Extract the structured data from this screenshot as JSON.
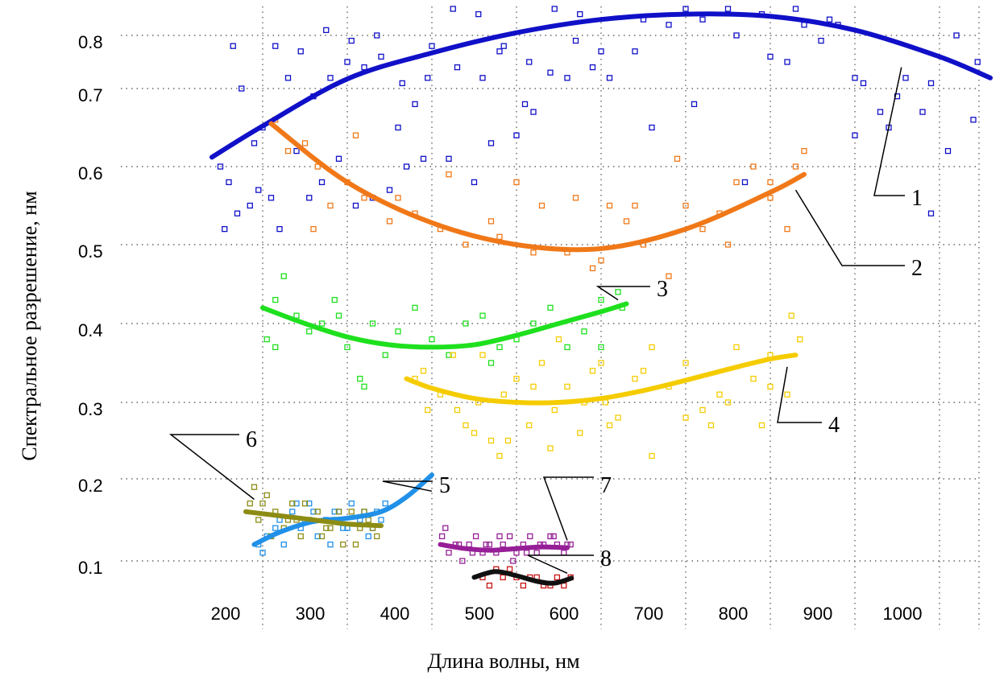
{
  "chart_data": {
    "type": "scatter",
    "title": "",
    "xlabel": "Длина волны, нм",
    "ylabel": "Спектральное разрешение, нм",
    "xlim": [
      160,
      1060
    ],
    "ylim": [
      0.05,
      0.85
    ],
    "x_ticks": [
      200,
      300,
      400,
      500,
      600,
      700,
      800,
      900,
      1000
    ],
    "y_ticks": [
      0.1,
      0.2,
      0.3,
      0.4,
      0.5,
      0.6,
      0.7,
      0.8
    ],
    "x_tick_labels": [
      "200",
      "300",
      "400",
      "500",
      "600",
      "700",
      "800",
      "900",
      "1000"
    ],
    "y_tick_labels": [
      "0.1",
      "0.2",
      "0.3",
      "0.4",
      "0.5",
      "0.6",
      "0.7",
      "0.8"
    ],
    "grid": true,
    "legend": "none",
    "series": [
      {
        "label": "1",
        "color": "#1010c8",
        "fit_x": [
          140,
          200,
          300,
          400,
          500,
          600,
          700,
          800,
          900,
          1000,
          1060
        ],
        "fit_y": [
          0.612,
          0.652,
          0.718,
          0.767,
          0.805,
          0.83,
          0.84,
          0.836,
          0.81,
          0.76,
          0.72
        ],
        "points_x": [
          150,
          160,
          170,
          185,
          195,
          210,
          220,
          240,
          255,
          270,
          290,
          310,
          330,
          350,
          370,
          390,
          420,
          450,
          470,
          500,
          520,
          560,
          590,
          640,
          680,
          720,
          760,
          800,
          840,
          870,
          900,
          930,
          960,
          990,
          1020,
          1045,
          155,
          175,
          200,
          230,
          260,
          280,
          300,
          320,
          340,
          360,
          380,
          400,
          430,
          460,
          480,
          510,
          540,
          570,
          600,
          650,
          700,
          750,
          790,
          830,
          880,
          910,
          950,
          980,
          1010,
          1040,
          165,
          190,
          215,
          245,
          275,
          305,
          335,
          365,
          395,
          425,
          455,
          485,
          515,
          545,
          575,
          610,
          660,
          710,
          770,
          820,
          860,
          900,
          940,
          990
        ],
        "points_y": [
          0.6,
          0.58,
          0.54,
          0.55,
          0.57,
          0.56,
          0.52,
          0.62,
          0.56,
          0.58,
          0.61,
          0.55,
          0.56,
          0.57,
          0.6,
          0.61,
          0.61,
          0.58,
          0.63,
          0.64,
          0.67,
          0.72,
          0.74,
          0.77,
          0.82,
          0.83,
          0.8,
          0.76,
          0.82,
          0.83,
          0.72,
          0.67,
          0.72,
          0.71,
          0.8,
          0.75,
          0.52,
          0.7,
          0.65,
          0.72,
          0.69,
          0.72,
          0.75,
          0.74,
          0.76,
          0.65,
          0.68,
          0.78,
          0.74,
          0.72,
          0.77,
          0.68,
          0.73,
          0.79,
          0.77,
          0.83,
          0.85,
          0.85,
          0.84,
          0.85,
          0.82,
          0.71,
          0.69,
          0.67,
          0.62,
          0.66,
          0.78,
          0.63,
          0.78,
          0.77,
          0.81,
          0.79,
          0.8,
          0.71,
          0.72,
          0.85,
          0.84,
          0.78,
          0.75,
          0.85,
          0.84,
          0.72,
          0.65,
          0.68,
          0.58,
          0.75,
          0.79,
          0.64,
          0.65,
          0.54
        ]
      },
      {
        "label": "2",
        "color": "#f07818",
        "fit_x": [
          210,
          300,
          400,
          500,
          600,
          700,
          800,
          840
        ],
        "fit_y": [
          0.655,
          0.58,
          0.528,
          0.5,
          0.495,
          0.52,
          0.567,
          0.59
        ],
        "points_x": [
          215,
          230,
          250,
          265,
          280,
          300,
          320,
          350,
          380,
          410,
          440,
          470,
          500,
          530,
          560,
          590,
          610,
          630,
          650,
          680,
          700,
          720,
          740,
          760,
          780,
          800,
          820,
          840,
          260,
          310,
          360,
          420,
          480,
          520,
          570,
          600,
          640,
          690,
          750,
          800,
          830
        ],
        "points_y": [
          0.66,
          0.62,
          0.63,
          0.6,
          0.55,
          0.58,
          0.56,
          0.53,
          0.54,
          0.52,
          0.5,
          0.53,
          0.58,
          0.55,
          0.49,
          0.47,
          0.55,
          0.53,
          0.5,
          0.46,
          0.55,
          0.52,
          0.54,
          0.58,
          0.6,
          0.56,
          0.52,
          0.62,
          0.52,
          0.64,
          0.56,
          0.59,
          0.51,
          0.49,
          0.56,
          0.48,
          0.55,
          0.61,
          0.5,
          0.58,
          0.6
        ]
      },
      {
        "label": "3",
        "color": "#1ee01e",
        "fit_x": [
          200,
          250,
          300,
          350,
          400,
          450,
          500,
          550,
          600,
          630
        ],
        "fit_y": [
          0.42,
          0.4,
          0.383,
          0.373,
          0.37,
          0.373,
          0.385,
          0.4,
          0.415,
          0.425
        ],
        "points_x": [
          205,
          215,
          225,
          240,
          255,
          270,
          285,
          300,
          315,
          330,
          345,
          360,
          380,
          400,
          420,
          440,
          460,
          480,
          500,
          520,
          540,
          560,
          580,
          600,
          620,
          625,
          215,
          290,
          320,
          470,
          600
        ],
        "points_y": [
          0.38,
          0.37,
          0.46,
          0.41,
          0.39,
          0.4,
          0.43,
          0.37,
          0.33,
          0.4,
          0.36,
          0.39,
          0.42,
          0.38,
          0.36,
          0.4,
          0.41,
          0.37,
          0.38,
          0.4,
          0.42,
          0.37,
          0.39,
          0.43,
          0.44,
          0.42,
          0.43,
          0.41,
          0.32,
          0.35,
          0.37
        ]
      },
      {
        "label": "4",
        "color": "#f5cc00",
        "fit_x": [
          370,
          400,
          450,
          500,
          550,
          600,
          650,
          700,
          750,
          800,
          830
        ],
        "fit_y": [
          0.33,
          0.318,
          0.305,
          0.3,
          0.3,
          0.305,
          0.315,
          0.328,
          0.342,
          0.355,
          0.36
        ],
        "points_x": [
          380,
          395,
          410,
          425,
          440,
          455,
          470,
          485,
          500,
          515,
          530,
          545,
          560,
          575,
          590,
          605,
          620,
          640,
          660,
          680,
          700,
          720,
          740,
          760,
          780,
          800,
          820,
          835,
          390,
          430,
          460,
          490,
          520,
          550,
          580,
          610,
          650,
          700,
          750,
          800,
          825,
          450,
          480,
          540,
          600,
          660,
          730,
          790
        ],
        "points_y": [
          0.33,
          0.29,
          0.31,
          0.36,
          0.27,
          0.3,
          0.25,
          0.31,
          0.33,
          0.27,
          0.35,
          0.29,
          0.32,
          0.26,
          0.34,
          0.3,
          0.28,
          0.33,
          0.37,
          0.32,
          0.35,
          0.29,
          0.31,
          0.37,
          0.33,
          0.36,
          0.31,
          0.38,
          0.34,
          0.29,
          0.36,
          0.25,
          0.32,
          0.38,
          0.3,
          0.27,
          0.34,
          0.28,
          0.3,
          0.32,
          0.41,
          0.26,
          0.23,
          0.24,
          0.35,
          0.23,
          0.27,
          0.27
        ]
      },
      {
        "label": "5",
        "color": "#2090e8",
        "fit_x": [
          190,
          220,
          260,
          300,
          340,
          370,
          400
        ],
        "fit_y": [
          0.12,
          0.135,
          0.148,
          0.152,
          0.16,
          0.178,
          0.205
        ],
        "points_x": [
          195,
          205,
          215,
          225,
          235,
          245,
          255,
          265,
          275,
          285,
          295,
          305,
          315,
          325,
          335,
          345,
          200,
          220,
          240,
          260,
          280,
          300,
          320,
          340,
          210,
          250,
          290,
          330
        ],
        "points_y": [
          0.12,
          0.13,
          0.14,
          0.12,
          0.16,
          0.14,
          0.17,
          0.13,
          0.15,
          0.16,
          0.14,
          0.17,
          0.15,
          0.13,
          0.16,
          0.17,
          0.11,
          0.15,
          0.17,
          0.16,
          0.12,
          0.14,
          0.16,
          0.15,
          0.13,
          0.15,
          0.16,
          0.14
        ]
      },
      {
        "label": "6",
        "color": "#8c8c14",
        "fit_x": [
          180,
          220,
          260,
          300,
          340
        ],
        "fit_y": [
          0.16,
          0.155,
          0.15,
          0.145,
          0.143
        ],
        "points_x": [
          185,
          195,
          205,
          215,
          225,
          235,
          245,
          255,
          265,
          275,
          285,
          295,
          305,
          315,
          325,
          335,
          190,
          210,
          230,
          250,
          270,
          290,
          310,
          330,
          200,
          240,
          280,
          320
        ],
        "points_y": [
          0.17,
          0.15,
          0.18,
          0.16,
          0.14,
          0.17,
          0.13,
          0.15,
          0.16,
          0.14,
          0.15,
          0.12,
          0.16,
          0.14,
          0.15,
          0.13,
          0.19,
          0.13,
          0.15,
          0.17,
          0.13,
          0.16,
          0.12,
          0.14,
          0.17,
          0.15,
          0.14,
          0.16
        ]
      },
      {
        "label": "7",
        "color": "#961e96",
        "fit_x": [
          410,
          440,
          470,
          500,
          530,
          560
        ],
        "fit_y": [
          0.12,
          0.115,
          0.113,
          0.115,
          0.117,
          0.116
        ],
        "points_x": [
          412,
          420,
          428,
          436,
          444,
          452,
          460,
          468,
          476,
          484,
          492,
          500,
          508,
          516,
          524,
          532,
          540,
          548,
          556,
          564,
          416,
          432,
          448,
          464,
          480,
          496,
          512,
          528,
          544,
          560
        ],
        "points_y": [
          0.13,
          0.11,
          0.12,
          0.1,
          0.12,
          0.13,
          0.11,
          0.12,
          0.11,
          0.12,
          0.13,
          0.11,
          0.12,
          0.13,
          0.11,
          0.12,
          0.13,
          0.12,
          0.11,
          0.12,
          0.14,
          0.12,
          0.11,
          0.12,
          0.13,
          0.1,
          0.11,
          0.12,
          0.13,
          0.12
        ]
      },
      {
        "label": "8",
        "color": "#111111",
        "point_color": "#c81414",
        "fit_x": [
          450,
          475,
          500,
          525,
          545,
          565
        ],
        "fit_y": [
          0.08,
          0.087,
          0.082,
          0.075,
          0.073,
          0.079
        ],
        "points_x": [
          460,
          468,
          476,
          484,
          492,
          500,
          508,
          516,
          524,
          532,
          540,
          548,
          556,
          564
        ],
        "points_y": [
          0.08,
          0.07,
          0.09,
          0.08,
          0.09,
          0.08,
          0.07,
          0.08,
          0.08,
          0.07,
          0.07,
          0.08,
          0.07,
          0.08
        ]
      }
    ],
    "callouts": [
      {
        "text": "1",
        "series": 0,
        "anchor_x": 955,
        "anchor_y": 0.74
      },
      {
        "text": "2",
        "series": 1,
        "anchor_x": 830,
        "anchor_y": 0.57
      },
      {
        "text": "3",
        "series": 2,
        "anchor_x": 620,
        "anchor_y": 0.43
      },
      {
        "text": "4",
        "series": 3,
        "anchor_x": 820,
        "anchor_y": 0.345
      },
      {
        "text": "5",
        "series": 4,
        "anchor_x": 400,
        "anchor_y": 0.185
      },
      {
        "text": "6",
        "series": 5,
        "anchor_x": 190,
        "anchor_y": 0.175
      },
      {
        "text": "7",
        "series": 6,
        "anchor_x": 560,
        "anchor_y": 0.125
      },
      {
        "text": "8",
        "series": 7,
        "anchor_x": 560,
        "anchor_y": 0.085
      }
    ]
  }
}
